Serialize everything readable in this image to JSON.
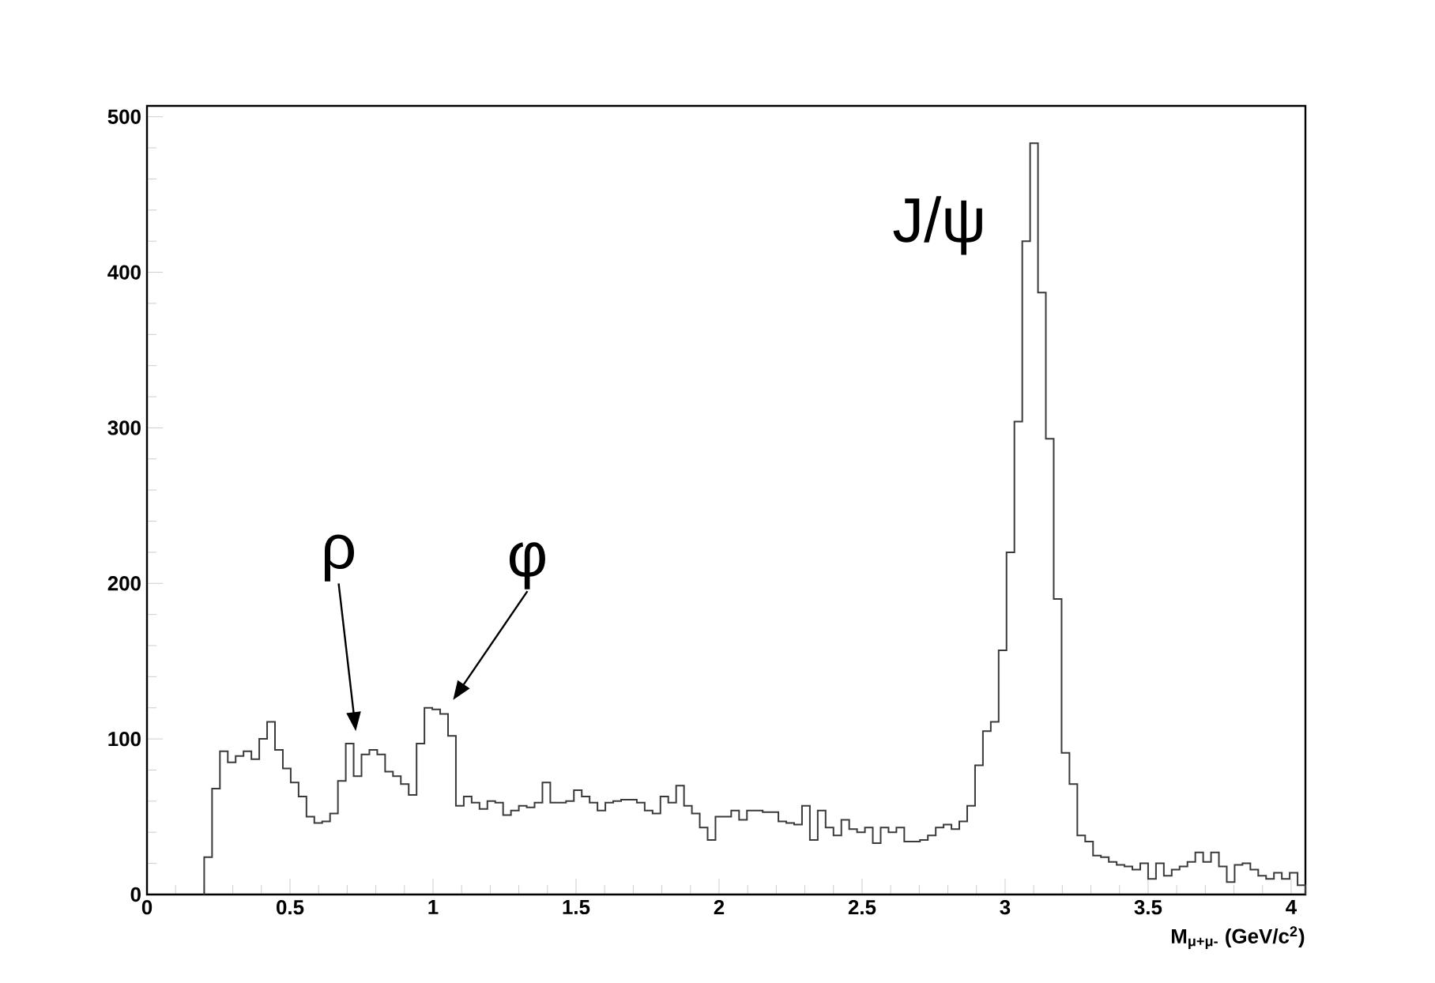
{
  "chart_data": {
    "type": "histogram",
    "xlabel": "M$_{μ+μ-}$ (GeV/c$^{2}$)",
    "bins": [
      0.2,
      0.2275,
      0.255,
      0.2825,
      0.31,
      0.3375,
      0.365,
      0.3925,
      0.42,
      0.4475,
      0.475,
      0.5025,
      0.53,
      0.5575,
      0.585,
      0.6125,
      0.64,
      0.6675,
      0.695,
      0.7225,
      0.75,
      0.7775,
      0.805,
      0.8325,
      0.86,
      0.8875,
      0.915,
      0.9425,
      0.97,
      0.9975,
      1.025,
      1.0525,
      1.08,
      1.1075,
      1.135,
      1.1625,
      1.19,
      1.2175,
      1.245,
      1.2725,
      1.3,
      1.3275,
      1.355,
      1.3825,
      1.41,
      1.4375,
      1.465,
      1.4925,
      1.52,
      1.5475,
      1.575,
      1.6025,
      1.63,
      1.6575,
      1.685,
      1.7125,
      1.74,
      1.7675,
      1.795,
      1.8225,
      1.85,
      1.8775,
      1.905,
      1.9325,
      1.96,
      1.9875,
      2.015,
      2.0425,
      2.07,
      2.0975,
      2.125,
      2.1525,
      2.18,
      2.2075,
      2.235,
      2.2625,
      2.29,
      2.3175,
      2.345,
      2.3725,
      2.4,
      2.4275,
      2.455,
      2.4825,
      2.51,
      2.5375,
      2.565,
      2.5925,
      2.62,
      2.6475,
      2.675,
      2.7025,
      2.73,
      2.7575,
      2.785,
      2.8125,
      2.84,
      2.8675,
      2.895,
      2.9225,
      2.95,
      2.9775,
      3.005,
      3.0325,
      3.06,
      3.0875,
      3.115,
      3.1425,
      3.17,
      3.1975,
      3.225,
      3.2525,
      3.28,
      3.3075,
      3.335,
      3.3625,
      3.39,
      3.4175,
      3.445,
      3.4725,
      3.5,
      3.5275,
      3.555,
      3.5825,
      3.61,
      3.6375,
      3.665,
      3.6925,
      3.72,
      3.7475,
      3.775,
      3.8025,
      3.83,
      3.8575,
      3.885,
      3.9125,
      3.94,
      3.9675,
      3.995,
      4.0225,
      4.05
    ],
    "values": [
      24,
      68,
      92,
      85,
      89,
      92,
      87,
      100,
      111,
      93,
      81,
      72,
      63,
      50,
      46,
      47,
      52,
      73,
      97,
      76,
      90,
      93,
      90,
      79,
      76,
      71,
      64,
      97,
      120,
      119,
      116,
      102,
      57,
      63,
      59,
      55,
      60,
      59,
      51,
      54,
      57,
      56,
      59,
      72,
      59,
      59,
      60,
      67,
      63,
      59,
      54,
      59,
      60,
      61,
      61,
      59,
      54,
      52,
      63,
      59,
      70,
      57,
      52,
      43,
      35,
      50,
      50,
      54,
      48,
      54,
      54,
      53,
      53,
      47,
      46,
      45,
      57,
      35,
      54,
      43,
      38,
      48,
      42,
      40,
      43,
      33,
      43,
      40,
      43,
      34,
      34,
      35,
      38,
      43,
      45,
      42,
      47,
      57,
      83,
      105,
      111,
      157,
      220,
      304,
      420,
      483,
      387,
      293,
      190,
      91,
      71,
      38,
      34,
      25,
      24,
      21,
      19,
      18,
      16,
      20,
      10,
      20,
      12,
      16,
      18,
      21,
      27,
      21,
      27,
      18,
      8,
      19,
      20,
      16,
      12,
      10,
      14,
      10,
      14,
      6
    ],
    "color": "#3a3a3a",
    "xlim": [
      0,
      4.05
    ],
    "ylim": [
      0,
      507
    ],
    "xticks": [
      0,
      0.5,
      1,
      1.5,
      2,
      2.5,
      3,
      3.5,
      4
    ],
    "yticks": [
      0,
      100,
      200,
      300,
      400,
      500
    ],
    "grid": false,
    "annotations": [
      "ρ",
      "φ",
      "J/ψ"
    ]
  }
}
